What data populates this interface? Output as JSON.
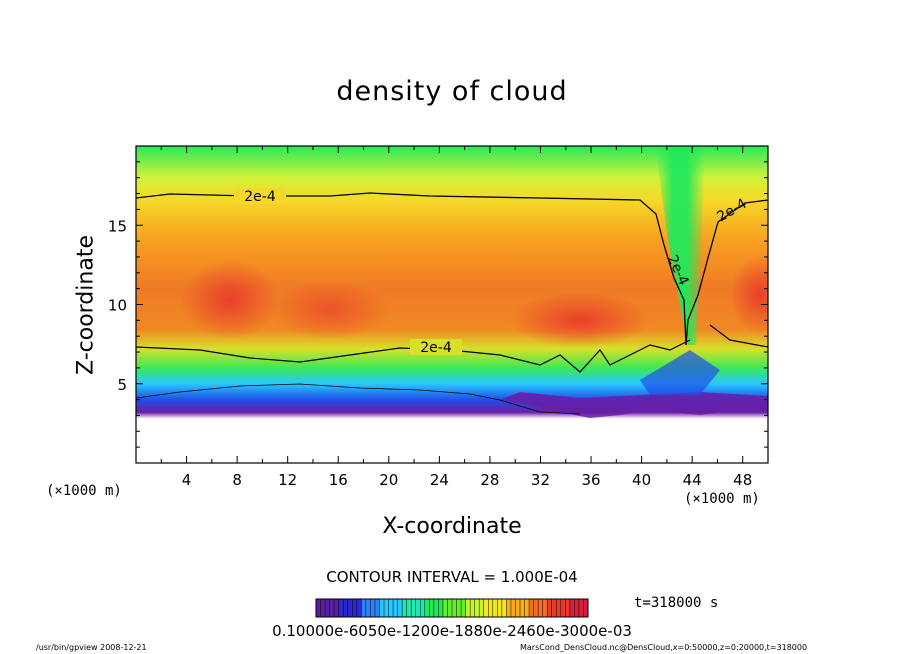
{
  "chart_data": {
    "type": "heatmap",
    "title": "density of cloud",
    "xlabel": "X-coordinate",
    "ylabel": "Z-coordinate",
    "x_unit_left": "(×1000 m)",
    "x_unit_right": "(×1000 m)",
    "xlim": [
      0,
      50
    ],
    "ylim": [
      0,
      20
    ],
    "x_ticks": [
      4,
      8,
      12,
      16,
      20,
      24,
      28,
      32,
      36,
      40,
      44,
      48
    ],
    "y_ticks": [
      5,
      10,
      15
    ],
    "contour_interval_label": "CONTOUR INTERVAL = 1.000E-04",
    "contour_label": "2e-4",
    "contour_level": 0.0002,
    "time_label": "t=318000 s",
    "colorbar_labels_text": "0.10000e-6050e-1200e-1880e-2460e-3000e-03",
    "colorbar_colors": [
      "#5a1ea0",
      "#2a2ad0",
      "#2f7fff",
      "#27c8ff",
      "#1ee8b4",
      "#22e85a",
      "#63f02a",
      "#c4f52a",
      "#f2e820",
      "#f8ae1a",
      "#f47020",
      "#ea3a2a",
      "#d8203e"
    ],
    "footer_left": "/usr/bin/gpview   2008-12-21",
    "footer_right": "MarsCond_DensCloud.nc@DensCloud,x=0:50000,z=0:20000,t=318000"
  }
}
